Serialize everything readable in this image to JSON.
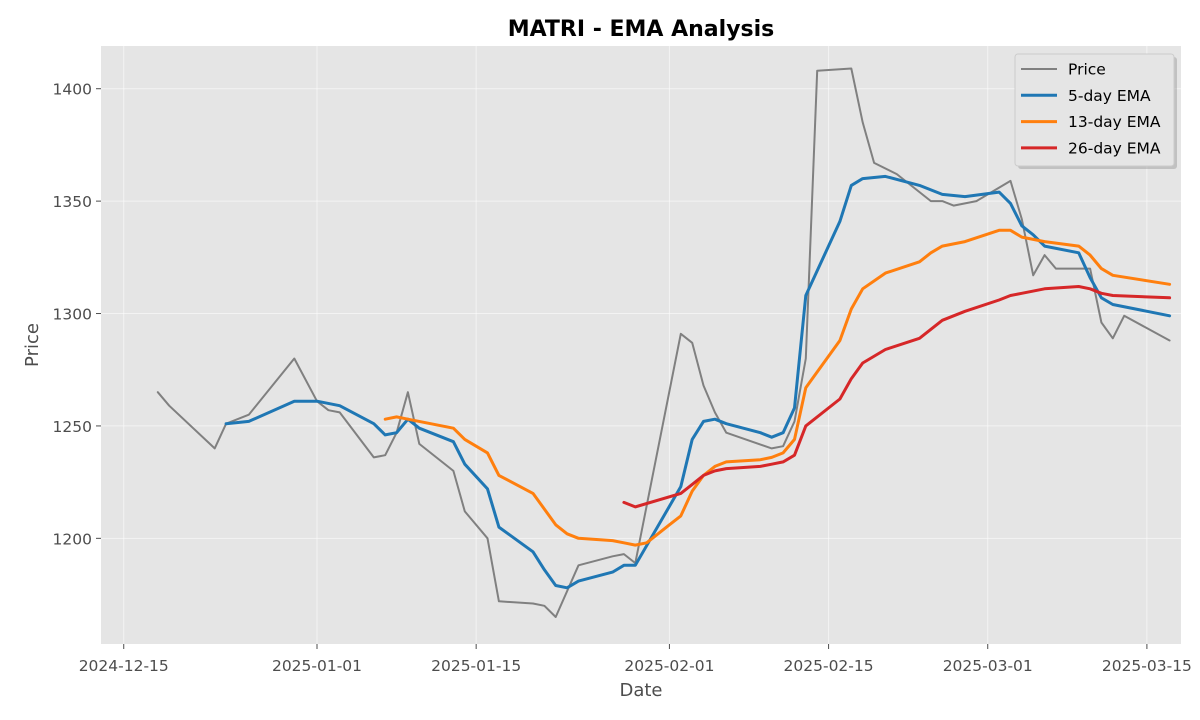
{
  "chart_data": {
    "type": "line",
    "title": "MATRI - EMA Analysis",
    "xlabel": "Date",
    "ylabel": "Price",
    "xlim": [
      "2024-12-13",
      "2025-03-18"
    ],
    "ylim": [
      1153,
      1419
    ],
    "x_ticks": [
      "2024-12-15",
      "2025-01-01",
      "2025-01-15",
      "2025-02-01",
      "2025-02-15",
      "2025-03-01",
      "2025-03-15"
    ],
    "y_ticks": [
      1200,
      1250,
      1300,
      1350,
      1400
    ],
    "grid": true,
    "legend_position": "top-right",
    "series": [
      {
        "name": "Price",
        "color": "#808080",
        "points": [
          [
            "2024-12-18",
            1265
          ],
          [
            "2024-12-19",
            1259
          ],
          [
            "2024-12-23",
            1240
          ],
          [
            "2024-12-24",
            1251
          ],
          [
            "2024-12-26",
            1255
          ],
          [
            "2024-12-30",
            1280
          ],
          [
            "2025-01-01",
            1261
          ],
          [
            "2025-01-02",
            1257
          ],
          [
            "2025-01-03",
            1256
          ],
          [
            "2025-01-06",
            1236
          ],
          [
            "2025-01-07",
            1237
          ],
          [
            "2025-01-08",
            1247
          ],
          [
            "2025-01-09",
            1265
          ],
          [
            "2025-01-10",
            1242
          ],
          [
            "2025-01-13",
            1230
          ],
          [
            "2025-01-14",
            1212
          ],
          [
            "2025-01-16",
            1200
          ],
          [
            "2025-01-17",
            1172
          ],
          [
            "2025-01-20",
            1171
          ],
          [
            "2025-01-21",
            1170
          ],
          [
            "2025-01-22",
            1165
          ],
          [
            "2025-01-24",
            1188
          ],
          [
            "2025-01-27",
            1192
          ],
          [
            "2025-01-28",
            1193
          ],
          [
            "2025-01-29",
            1189
          ],
          [
            "2025-02-02",
            1291
          ],
          [
            "2025-02-03",
            1287
          ],
          [
            "2025-02-04",
            1268
          ],
          [
            "2025-02-05",
            1256
          ],
          [
            "2025-02-06",
            1247
          ],
          [
            "2025-02-10",
            1240
          ],
          [
            "2025-02-11",
            1241
          ],
          [
            "2025-02-12",
            1252
          ],
          [
            "2025-02-13",
            1280
          ],
          [
            "2025-02-14",
            1408
          ],
          [
            "2025-02-17",
            1409
          ],
          [
            "2025-02-18",
            1385
          ],
          [
            "2025-02-19",
            1367
          ],
          [
            "2025-02-21",
            1362
          ],
          [
            "2025-02-24",
            1350
          ],
          [
            "2025-02-25",
            1350
          ],
          [
            "2025-02-26",
            1348
          ],
          [
            "2025-02-28",
            1350
          ],
          [
            "2025-03-03",
            1359
          ],
          [
            "2025-03-04",
            1342
          ],
          [
            "2025-03-05",
            1317
          ],
          [
            "2025-03-06",
            1326
          ],
          [
            "2025-03-07",
            1320
          ],
          [
            "2025-03-10",
            1320
          ],
          [
            "2025-03-11",
            1296
          ],
          [
            "2025-03-12",
            1289
          ],
          [
            "2025-03-13",
            1299
          ],
          [
            "2025-03-17",
            1288
          ]
        ]
      },
      {
        "name": "5-day EMA",
        "color": "#1f77b4",
        "points": [
          [
            "2024-12-24",
            1251
          ],
          [
            "2024-12-26",
            1252
          ],
          [
            "2024-12-30",
            1261
          ],
          [
            "2025-01-01",
            1261
          ],
          [
            "2025-01-03",
            1259
          ],
          [
            "2025-01-06",
            1251
          ],
          [
            "2025-01-07",
            1246
          ],
          [
            "2025-01-08",
            1247
          ],
          [
            "2025-01-09",
            1253
          ],
          [
            "2025-01-10",
            1249
          ],
          [
            "2025-01-13",
            1243
          ],
          [
            "2025-01-14",
            1233
          ],
          [
            "2025-01-16",
            1222
          ],
          [
            "2025-01-17",
            1205
          ],
          [
            "2025-01-20",
            1194
          ],
          [
            "2025-01-21",
            1186
          ],
          [
            "2025-01-22",
            1179
          ],
          [
            "2025-01-23",
            1178
          ],
          [
            "2025-01-24",
            1181
          ],
          [
            "2025-01-27",
            1185
          ],
          [
            "2025-01-28",
            1188
          ],
          [
            "2025-01-29",
            1188
          ],
          [
            "2025-02-02",
            1223
          ],
          [
            "2025-02-03",
            1244
          ],
          [
            "2025-02-04",
            1252
          ],
          [
            "2025-02-05",
            1253
          ],
          [
            "2025-02-06",
            1251
          ],
          [
            "2025-02-09",
            1247
          ],
          [
            "2025-02-10",
            1245
          ],
          [
            "2025-02-11",
            1247
          ],
          [
            "2025-02-12",
            1258
          ],
          [
            "2025-02-13",
            1308
          ],
          [
            "2025-02-16",
            1341
          ],
          [
            "2025-02-17",
            1357
          ],
          [
            "2025-02-18",
            1360
          ],
          [
            "2025-02-20",
            1361
          ],
          [
            "2025-02-23",
            1357
          ],
          [
            "2025-02-25",
            1353
          ],
          [
            "2025-02-27",
            1352
          ],
          [
            "2025-03-02",
            1354
          ],
          [
            "2025-03-03",
            1349
          ],
          [
            "2025-03-04",
            1339
          ],
          [
            "2025-03-05",
            1335
          ],
          [
            "2025-03-06",
            1330
          ],
          [
            "2025-03-09",
            1327
          ],
          [
            "2025-03-10",
            1316
          ],
          [
            "2025-03-11",
            1307
          ],
          [
            "2025-03-12",
            1304
          ],
          [
            "2025-03-17",
            1299
          ]
        ]
      },
      {
        "name": "13-day EMA",
        "color": "#ff7f0e",
        "points": [
          [
            "2025-01-07",
            1253
          ],
          [
            "2025-01-08",
            1254
          ],
          [
            "2025-01-09",
            1253
          ],
          [
            "2025-01-13",
            1249
          ],
          [
            "2025-01-14",
            1244
          ],
          [
            "2025-01-16",
            1238
          ],
          [
            "2025-01-17",
            1228
          ],
          [
            "2025-01-20",
            1220
          ],
          [
            "2025-01-21",
            1213
          ],
          [
            "2025-01-22",
            1206
          ],
          [
            "2025-01-23",
            1202
          ],
          [
            "2025-01-24",
            1200
          ],
          [
            "2025-01-27",
            1199
          ],
          [
            "2025-01-28",
            1198
          ],
          [
            "2025-01-29",
            1197
          ],
          [
            "2025-01-30",
            1198
          ],
          [
            "2025-02-01",
            1206
          ],
          [
            "2025-02-02",
            1210
          ],
          [
            "2025-02-03",
            1221
          ],
          [
            "2025-02-04",
            1228
          ],
          [
            "2025-02-05",
            1232
          ],
          [
            "2025-02-06",
            1234
          ],
          [
            "2025-02-09",
            1235
          ],
          [
            "2025-02-10",
            1236
          ],
          [
            "2025-02-11",
            1238
          ],
          [
            "2025-02-12",
            1244
          ],
          [
            "2025-02-13",
            1267
          ],
          [
            "2025-02-16",
            1288
          ],
          [
            "2025-02-17",
            1302
          ],
          [
            "2025-02-18",
            1311
          ],
          [
            "2025-02-20",
            1318
          ],
          [
            "2025-02-23",
            1323
          ],
          [
            "2025-02-24",
            1327
          ],
          [
            "2025-02-25",
            1330
          ],
          [
            "2025-02-27",
            1332
          ],
          [
            "2025-03-02",
            1337
          ],
          [
            "2025-03-03",
            1337
          ],
          [
            "2025-03-04",
            1334
          ],
          [
            "2025-03-06",
            1332
          ],
          [
            "2025-03-09",
            1330
          ],
          [
            "2025-03-10",
            1326
          ],
          [
            "2025-03-11",
            1320
          ],
          [
            "2025-03-12",
            1317
          ],
          [
            "2025-03-17",
            1313
          ]
        ]
      },
      {
        "name": "26-day EMA",
        "color": "#d62728",
        "points": [
          [
            "2025-01-28",
            1216
          ],
          [
            "2025-01-29",
            1214
          ],
          [
            "2025-02-02",
            1220
          ],
          [
            "2025-02-03",
            1224
          ],
          [
            "2025-02-04",
            1228
          ],
          [
            "2025-02-05",
            1230
          ],
          [
            "2025-02-06",
            1231
          ],
          [
            "2025-02-09",
            1232
          ],
          [
            "2025-02-10",
            1233
          ],
          [
            "2025-02-11",
            1234
          ],
          [
            "2025-02-12",
            1237
          ],
          [
            "2025-02-13",
            1250
          ],
          [
            "2025-02-16",
            1262
          ],
          [
            "2025-02-17",
            1271
          ],
          [
            "2025-02-18",
            1278
          ],
          [
            "2025-02-20",
            1284
          ],
          [
            "2025-02-23",
            1289
          ],
          [
            "2025-02-24",
            1293
          ],
          [
            "2025-02-25",
            1297
          ],
          [
            "2025-02-27",
            1301
          ],
          [
            "2025-03-02",
            1306
          ],
          [
            "2025-03-03",
            1308
          ],
          [
            "2025-03-04",
            1309
          ],
          [
            "2025-03-06",
            1311
          ],
          [
            "2025-03-09",
            1312
          ],
          [
            "2025-03-10",
            1311
          ],
          [
            "2025-03-11",
            1309
          ],
          [
            "2025-03-12",
            1308
          ],
          [
            "2025-03-17",
            1307
          ]
        ]
      }
    ]
  },
  "colors": {
    "plot_background": "#e5e5e5",
    "page_background": "#ffffff",
    "grid": "#ffffff",
    "text": "#4d4d4d"
  }
}
